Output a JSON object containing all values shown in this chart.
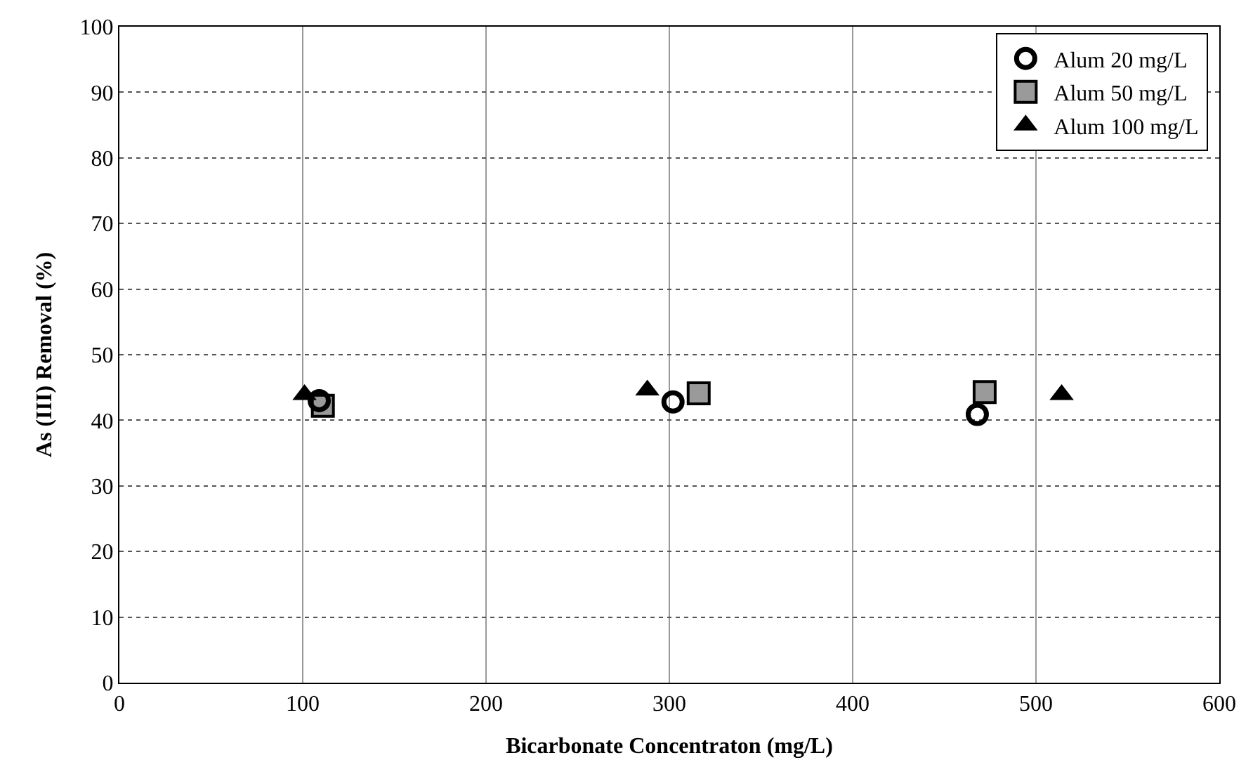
{
  "chart_data": {
    "type": "scatter",
    "xlabel": "Bicarbonate Concentraton (mg/L)",
    "ylabel": "As (III) Removal (%)",
    "xlim": [
      0,
      600
    ],
    "xticks": [
      0,
      100,
      200,
      300,
      400,
      500,
      600
    ],
    "ylim": [
      0,
      100
    ],
    "yticks": [
      0,
      10,
      20,
      30,
      40,
      50,
      60,
      70,
      80,
      90,
      100
    ],
    "grid": true,
    "legend": "top right",
    "series": [
      {
        "name": "Alum 20 mg/L",
        "color": "#000000",
        "marker": "circle",
        "x": [
          109,
          302,
          468
        ],
        "values": [
          43,
          42.8,
          40.9
        ]
      },
      {
        "name": "Alum 50 mg/L",
        "color": "#9a9a9a",
        "marker": "square",
        "x": [
          111,
          316,
          472
        ],
        "values": [
          42.2,
          44.1,
          44.3
        ]
      },
      {
        "name": "Alum 100 mg/L",
        "color": "#000000",
        "marker": "triangle",
        "x": [
          101,
          288,
          514
        ],
        "values": [
          43.9,
          44.6,
          43.9
        ]
      }
    ]
  }
}
